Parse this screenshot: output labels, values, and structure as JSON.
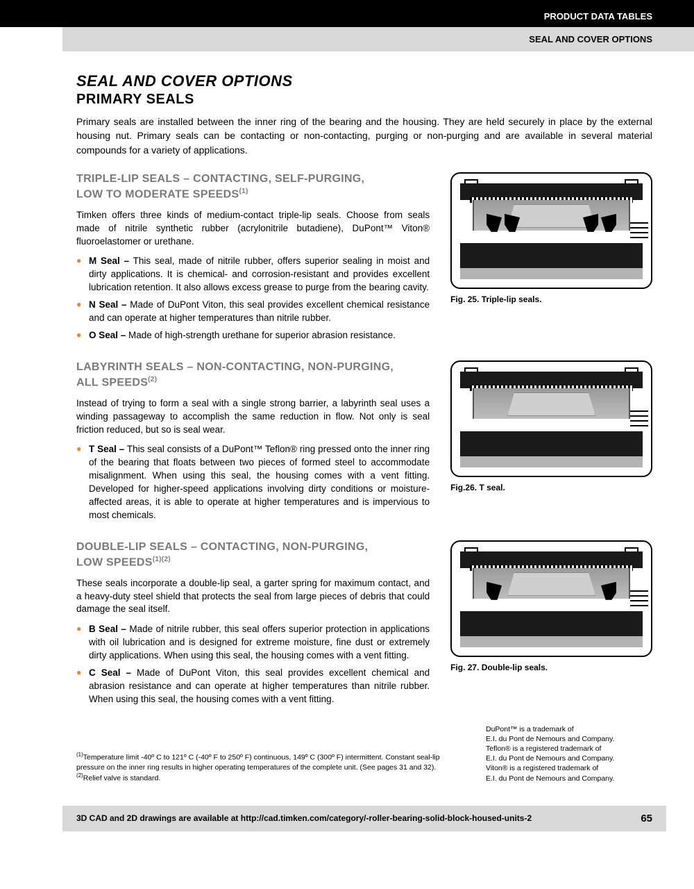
{
  "header": {
    "top": "PRODUCT DATA TABLES",
    "sub": "SEAL AND COVER OPTIONS"
  },
  "title": "SEAL AND COVER OPTIONS",
  "subtitle": "PRIMARY SEALS",
  "intro": "Primary seals are installed between the inner ring of the bearing and the housing. They are held securely in place by the external housing nut. Primary seals can be contacting or non-contacting, purging or non-purging and are available in several material compounds for a variety of applications.",
  "sections": [
    {
      "heading_l1": "TRIPLE-LIP SEALS – CONTACTING, SELF-PURGING,",
      "heading_l2": "LOW TO MODERATE SPEEDS",
      "heading_sup": "(1)",
      "para": "Timken offers three kinds of medium-contact triple-lip seals. Choose from seals made of nitrile synthetic rubber (acrylonitrile butadiene), DuPont™ Viton® fluoroelastomer or urethane.",
      "items": [
        {
          "label": "M Seal –",
          "text": " This seal, made of nitrile rubber, offers superior sealing in moist and dirty applications. It is chemical- and corrosion-resistant and provides excellent lubrication retention. It also allows excess grease to purge from the bearing cavity."
        },
        {
          "label": "N Seal –",
          "text": " Made of DuPont Viton, this seal provides excellent chemical resistance and can operate at higher temperatures than nitrile rubber."
        },
        {
          "label": "O Seal –",
          "text": " Made of high-strength urethane for superior abrasion resistance."
        }
      ],
      "fig": "Fig. 25. Triple-lip seals."
    },
    {
      "heading_l1": "LABYRINTH SEALS – NON-CONTACTING, NON-PURGING,",
      "heading_l2": "ALL SPEEDS",
      "heading_sup": "(2)",
      "para": "Instead of trying to form a seal with a single strong barrier, a labyrinth seal uses a winding passageway to accomplish the same reduction in flow. Not only is seal friction reduced, but so is seal wear.",
      "items": [
        {
          "label": "T Seal –",
          "text": " This seal consists of a DuPont™ Teflon® ring pressed onto the inner ring of the bearing that floats between two pieces of formed steel to accommodate misalignment. When using this seal, the housing comes with a vent fitting. Developed for higher-speed applications involving dirty conditions or moisture-affected areas, it is able to operate at higher temperatures and is impervious to most chemicals."
        }
      ],
      "fig": "Fig.26. T seal."
    },
    {
      "heading_l1": "DOUBLE-LIP SEALS – CONTACTING, NON-PURGING,",
      "heading_l2": "LOW SPEEDS",
      "heading_sup": "(1)(2)",
      "para": "These seals incorporate a double-lip seal, a garter spring for maximum contact, and a heavy-duty steel shield that protects the seal from large pieces of debris that could damage the seal itself.",
      "items": [
        {
          "label": "B Seal –",
          "text": " Made of nitrile rubber, this seal offers superior protection in applications with oil lubrication and is designed for extreme moisture, fine dust or extremely dirty applications. When using this seal, the housing comes with a vent fitting."
        },
        {
          "label": "C Seal –",
          "text": " Made of DuPont Viton, this seal provides excellent chemical and abrasion resistance and can operate at higher temperatures than nitrile rubber. When using this seal, the housing comes with a vent fitting."
        }
      ],
      "fig": "Fig. 27. Double-lip seals."
    }
  ],
  "footnotes": {
    "n1_sup": "(1)",
    "n1": "Temperature limit -40º C to 121º C (-40º F to 250º F) continuous, 149º C (300º F) intermittent. Constant seal-lip pressure on the inner ring results in higher operating temperatures of the complete unit. (See pages 31 and 32).",
    "n2_sup": "(2)",
    "n2": "Relief valve is standard."
  },
  "trademark": {
    "l1": "DuPont™ is a trademark of",
    "l2": "E.I. du Pont de Nemours and Company.",
    "l3": "Teflon® is a registered trademark of",
    "l4": "E.I. du Pont de Nemours and Company.",
    "l5": "Viton® is a registered trademark of",
    "l6": "E.I. du Pont de Nemours and Company."
  },
  "footer": {
    "text": "3D CAD and 2D drawings are available at http://cad.timken.com/category/-roller-bearing-solid-block-housed-units-2",
    "page": "65"
  }
}
